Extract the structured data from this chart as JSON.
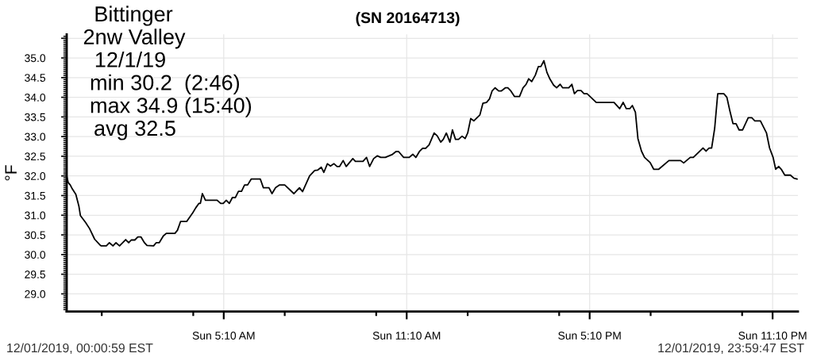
{
  "chart_data": {
    "type": "line",
    "title": "(SN 20164713)",
    "ylabel": "°F",
    "annotations": [
      "Bittinger",
      "2nw Valley",
      "12/1/19",
      "min 30.2  (2:46)",
      "max 34.9 (15:40)",
      "avg 32.5",
      "12/01/2019, 00:00:59 EST",
      "12/01/2019, 23:59:47 EST"
    ],
    "x": [
      "2019-12-01T00:01",
      "2019-12-01T00:04",
      "2019-12-01T00:08",
      "2019-12-01T00:12",
      "2019-12-01T00:19",
      "2019-12-01T00:25",
      "2019-12-01T00:28",
      "2019-12-01T00:38",
      "2019-12-01T00:46",
      "2019-12-01T00:56",
      "2019-12-01T01:06",
      "2019-12-01T01:09",
      "2019-12-01T01:19",
      "2019-12-01T01:25",
      "2019-12-01T01:32",
      "2019-12-01T01:38",
      "2019-12-01T01:45",
      "2019-12-01T01:57",
      "2019-12-01T02:03",
      "2019-12-01T02:08",
      "2019-12-01T02:15",
      "2019-12-01T02:21",
      "2019-12-01T02:27",
      "2019-12-01T02:34",
      "2019-12-01T02:39",
      "2019-12-01T02:52",
      "2019-12-01T02:57",
      "2019-12-01T03:03",
      "2019-12-01T03:11",
      "2019-12-01T03:17",
      "2019-12-01T03:34",
      "2019-12-01T03:39",
      "2019-12-01T03:45",
      "2019-12-01T03:57",
      "2019-12-01T04:09",
      "2019-12-01T04:15",
      "2019-12-01T04:21",
      "2019-12-01T04:24",
      "2019-12-01T04:28",
      "2019-12-01T04:34",
      "2019-12-01T04:57",
      "2019-12-01T05:04",
      "2019-12-01T05:09",
      "2019-12-01T05:15",
      "2019-12-01T05:21",
      "2019-12-01T05:27",
      "2019-12-01T05:33",
      "2019-12-01T05:39",
      "2019-12-01T05:45",
      "2019-12-01T05:51",
      "2019-12-01T05:57",
      "2019-12-01T06:04",
      "2019-12-01T06:22",
      "2019-12-01T06:28",
      "2019-12-01T06:39",
      "2019-12-01T06:45",
      "2019-12-01T06:52",
      "2019-12-01T07:00",
      "2019-12-01T07:10",
      "2019-12-01T07:28",
      "2019-12-01T07:39",
      "2019-12-01T07:45",
      "2019-12-01T07:59",
      "2019-12-01T08:09",
      "2019-12-01T08:15",
      "2019-12-01T08:22",
      "2019-12-01T08:27",
      "2019-12-01T08:34",
      "2019-12-01T08:40",
      "2019-12-01T08:47",
      "2019-12-01T08:53",
      "2019-12-01T08:58",
      "2019-12-01T09:05",
      "2019-12-01T09:11",
      "2019-12-01T09:24",
      "2019-12-01T09:29",
      "2019-12-01T09:44",
      "2019-12-01T09:51",
      "2019-12-01T09:57",
      "2019-12-01T10:05",
      "2019-12-01T10:12",
      "2019-12-01T10:19",
      "2019-12-01T10:28",
      "2019-12-01T10:41",
      "2019-12-01T10:49",
      "2019-12-01T10:54",
      "2019-12-01T11:04",
      "2019-12-01T11:15",
      "2019-12-01T11:22",
      "2019-12-01T11:28",
      "2019-12-01T11:35",
      "2019-12-01T11:41",
      "2019-12-01T11:47",
      "2019-12-01T11:54",
      "2019-12-01T12:04",
      "2019-12-01T12:10",
      "2019-12-01T12:17",
      "2019-12-01T12:22",
      "2019-12-01T12:28",
      "2019-12-01T12:35",
      "2019-12-01T12:40",
      "2019-12-01T12:46",
      "2019-12-01T12:52",
      "2019-12-01T12:59",
      "2019-12-01T13:05",
      "2019-12-01T13:10",
      "2019-12-01T13:16",
      "2019-12-01T13:22",
      "2019-12-01T13:34",
      "2019-12-01T13:40",
      "2019-12-01T13:47",
      "2019-12-01T13:53",
      "2019-12-01T13:58",
      "2019-12-01T14:04",
      "2019-12-01T14:11",
      "2019-12-01T14:16",
      "2019-12-01T14:24",
      "2019-12-01T14:29",
      "2019-12-01T14:35",
      "2019-12-01T14:42",
      "2019-12-01T14:52",
      "2019-12-01T14:59",
      "2019-12-01T15:05",
      "2019-12-01T15:10",
      "2019-12-01T15:16",
      "2019-12-01T15:23",
      "2019-12-01T15:29",
      "2019-12-01T15:34",
      "2019-12-01T15:40",
      "2019-12-01T15:46",
      "2019-12-01T15:52",
      "2019-12-01T15:59",
      "2019-12-01T16:05",
      "2019-12-01T16:12",
      "2019-12-01T16:17",
      "2019-12-01T16:29",
      "2019-12-01T16:35",
      "2019-12-01T16:40",
      "2019-12-01T16:46",
      "2019-12-01T16:53",
      "2019-12-01T16:59",
      "2019-12-01T17:05",
      "2019-12-01T17:23",
      "2019-12-01T17:58",
      "2019-12-01T18:09",
      "2019-12-01T18:16",
      "2019-12-01T18:22",
      "2019-12-01T18:29",
      "2019-12-01T18:34",
      "2019-12-01T18:40",
      "2019-12-01T18:45",
      "2019-12-01T18:52",
      "2019-12-01T18:58",
      "2019-12-01T19:09",
      "2019-12-01T19:16",
      "2019-12-01T19:26",
      "2019-12-01T19:46",
      "2019-12-01T20:09",
      "2019-12-01T20:15",
      "2019-12-01T20:28",
      "2019-12-01T20:34",
      "2019-12-01T20:53",
      "2019-12-01T20:59",
      "2019-12-01T21:05",
      "2019-12-01T21:10",
      "2019-12-01T21:16",
      "2019-12-01T21:22",
      "2019-12-01T21:34",
      "2019-12-01T21:40",
      "2019-12-01T21:46",
      "2019-12-01T21:52",
      "2019-12-01T21:58",
      "2019-12-01T22:04",
      "2019-12-01T22:11",
      "2019-12-01T22:22",
      "2019-12-01T22:29",
      "2019-12-01T22:35",
      "2019-12-01T22:46",
      "2019-12-01T22:58",
      "2019-12-01T23:04",
      "2019-12-01T23:11",
      "2019-12-01T23:16",
      "2019-12-01T23:22",
      "2019-12-01T23:27",
      "2019-12-01T23:34",
      "2019-12-01T23:45",
      "2019-12-01T23:52",
      "2019-12-01T23:58"
    ],
    "values": [
      32.0,
      31.83,
      31.77,
      31.67,
      31.53,
      31.23,
      30.99,
      30.82,
      30.66,
      30.39,
      30.25,
      30.22,
      30.22,
      30.3,
      30.22,
      30.3,
      30.22,
      30.38,
      30.3,
      30.37,
      30.37,
      30.45,
      30.45,
      30.3,
      30.23,
      30.22,
      30.3,
      30.3,
      30.47,
      30.54,
      30.54,
      30.62,
      30.84,
      30.84,
      31.06,
      31.19,
      31.3,
      31.3,
      31.55,
      31.38,
      31.38,
      31.3,
      31.3,
      31.38,
      31.3,
      31.45,
      31.45,
      31.61,
      31.61,
      31.77,
      31.77,
      31.92,
      31.92,
      31.7,
      31.7,
      31.55,
      31.7,
      31.77,
      31.77,
      31.55,
      31.7,
      31.6,
      32.0,
      32.14,
      32.15,
      32.22,
      32.09,
      32.31,
      32.25,
      32.31,
      32.24,
      32.24,
      32.39,
      32.24,
      32.44,
      32.37,
      32.37,
      32.47,
      32.24,
      32.44,
      32.51,
      32.47,
      32.47,
      32.54,
      32.62,
      32.62,
      32.47,
      32.47,
      32.55,
      32.47,
      32.62,
      32.7,
      32.7,
      32.79,
      33.09,
      33.02,
      32.86,
      32.93,
      33.09,
      32.86,
      33.17,
      32.93,
      32.93,
      33.01,
      32.95,
      33.09,
      33.46,
      33.4,
      33.55,
      33.85,
      33.87,
      33.96,
      34.16,
      34.24,
      34.16,
      34.16,
      34.24,
      34.24,
      34.16,
      34.02,
      34.02,
      34.24,
      34.33,
      34.47,
      34.4,
      34.56,
      34.78,
      34.78,
      34.93,
      34.63,
      34.46,
      34.31,
      34.24,
      34.33,
      34.24,
      34.24,
      34.33,
      34.09,
      34.17,
      34.17,
      34.09,
      34.09,
      33.87,
      33.87,
      33.71,
      33.87,
      33.71,
      33.71,
      33.79,
      33.62,
      32.95,
      32.63,
      32.47,
      32.34,
      32.17,
      32.17,
      32.39,
      32.39,
      32.33,
      32.47,
      32.47,
      32.71,
      32.63,
      32.71,
      32.71,
      33.21,
      34.09,
      34.09,
      34.0,
      33.65,
      33.33,
      33.33,
      33.17,
      33.17,
      33.48,
      33.48,
      33.4,
      33.4,
      33.09,
      32.71,
      32.47,
      32.17,
      32.24,
      32.17,
      32.02,
      32.02,
      31.94,
      31.92
    ],
    "color": "#000000",
    "xlim": [
      "2019-12-01T00:00:59",
      "2019-12-01T23:59:47"
    ],
    "xticks": [
      {
        "value": "2019-12-01T01:10",
        "label": null
      },
      {
        "value": "2019-12-01T04:10",
        "label": null
      },
      {
        "value": "2019-12-01T05:10",
        "label": "Sun 5:10 AM"
      },
      {
        "value": "2019-12-01T07:10",
        "label": null
      },
      {
        "value": "2019-12-01T10:10",
        "label": null
      },
      {
        "value": "2019-12-01T11:10",
        "label": "Sun 11:10 AM"
      },
      {
        "value": "2019-12-01T13:10",
        "label": null
      },
      {
        "value": "2019-12-01T16:10",
        "label": null
      },
      {
        "value": "2019-12-01T17:10",
        "label": "Sun 5:10 PM"
      },
      {
        "value": "2019-12-01T19:10",
        "label": null
      },
      {
        "value": "2019-12-01T22:10",
        "label": null
      },
      {
        "value": "2019-12-01T23:10",
        "label": "Sun 11:10 PM"
      }
    ],
    "ylim": [
      28.55,
      35.6
    ],
    "yticks": [
      {
        "value": 29,
        "label": "29.0"
      },
      29.5,
      {
        "value": 30,
        "label": "30.0"
      },
      30.5,
      {
        "value": 31,
        "label": "31.0"
      },
      31.5,
      {
        "value": 32,
        "label": "32.0"
      },
      32.5,
      {
        "value": 33,
        "label": "33.0"
      },
      33.5,
      {
        "value": 34,
        "label": "34.0"
      },
      34.5,
      {
        "value": 35,
        "label": "35.0"
      },
      {
        "value": 35.5,
        "label": null
      }
    ],
    "grid": true
  }
}
